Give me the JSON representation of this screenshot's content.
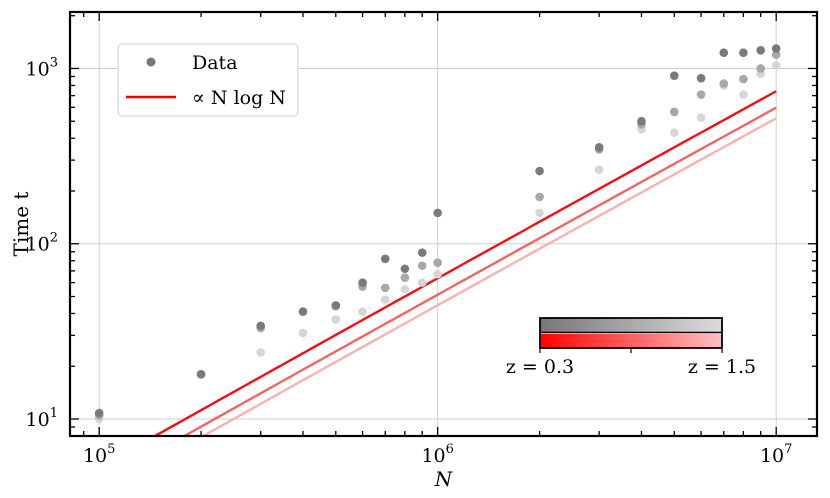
{
  "chart_data": {
    "type": "scatter",
    "xlabel": "N",
    "ylabel": "Time t",
    "xscale": "log",
    "yscale": "log",
    "xlim": [
      82000,
      13200000
    ],
    "ylim": [
      8.0,
      2100
    ],
    "grid": true,
    "x_ticks": [
      {
        "value": 100000,
        "base": "10",
        "exp": "5"
      },
      {
        "value": 1000000,
        "base": "10",
        "exp": "6"
      },
      {
        "value": 10000000,
        "base": "10",
        "exp": "7"
      }
    ],
    "y_ticks": [
      {
        "value": 10,
        "base": "10",
        "exp": "1"
      },
      {
        "value": 100,
        "base": "10",
        "exp": "2"
      },
      {
        "value": 1000,
        "base": "10",
        "exp": "3"
      }
    ],
    "legend": {
      "position": "upper-left",
      "entries": [
        {
          "label": "Data",
          "marker": "dot",
          "color": "#777777"
        },
        {
          "label": "∝ N log N",
          "marker": "line",
          "color": "#ee0000"
        }
      ]
    },
    "series": [
      {
        "z": 0.3,
        "dot_color": "#7a7a7a",
        "line_color": "#ee1111",
        "fit_coefficient": 1.059e-05,
        "points": [
          {
            "x": 100000,
            "y": 10.8
          },
          {
            "x": 200000,
            "y": 18
          },
          {
            "x": 300000,
            "y": 34
          },
          {
            "x": 400000,
            "y": 41
          },
          {
            "x": 500000,
            "y": 44.5
          },
          {
            "x": 600000,
            "y": 60
          },
          {
            "x": 700000,
            "y": 82
          },
          {
            "x": 800000,
            "y": 72
          },
          {
            "x": 900000,
            "y": 89
          },
          {
            "x": 1000000,
            "y": 150
          },
          {
            "x": 2000000,
            "y": 260
          },
          {
            "x": 3000000,
            "y": 355
          },
          {
            "x": 4000000,
            "y": 500
          },
          {
            "x": 5000000,
            "y": 910
          },
          {
            "x": 6000000,
            "y": 880
          },
          {
            "x": 7000000,
            "y": 1230
          },
          {
            "x": 8000000,
            "y": 1230
          },
          {
            "x": 9000000,
            "y": 1270
          },
          {
            "x": 10000000,
            "y": 1300
          }
        ]
      },
      {
        "z": 0.9,
        "dot_color": "#a8a8a8",
        "line_color": "#f06565",
        "fit_coefficient": 8.53e-06,
        "points": [
          {
            "x": 100000,
            "y": 10.5
          },
          {
            "x": 200000,
            "y": 18
          },
          {
            "x": 300000,
            "y": 33
          },
          {
            "x": 400000,
            "y": 41
          },
          {
            "x": 500000,
            "y": 44
          },
          {
            "x": 600000,
            "y": 57
          },
          {
            "x": 700000,
            "y": 56
          },
          {
            "x": 800000,
            "y": 64
          },
          {
            "x": 900000,
            "y": 75
          },
          {
            "x": 1000000,
            "y": 78
          },
          {
            "x": 2000000,
            "y": 185
          },
          {
            "x": 3000000,
            "y": 345
          },
          {
            "x": 4000000,
            "y": 480
          },
          {
            "x": 5000000,
            "y": 565
          },
          {
            "x": 6000000,
            "y": 710
          },
          {
            "x": 7000000,
            "y": 820
          },
          {
            "x": 8000000,
            "y": 870
          },
          {
            "x": 9000000,
            "y": 1000
          },
          {
            "x": 10000000,
            "y": 1200
          }
        ]
      },
      {
        "z": 1.5,
        "dot_color": "#d6d6d6",
        "line_color": "#f6b1b1",
        "fit_coefficient": 7.43e-06,
        "points": [
          {
            "x": 100000,
            "y": 10.0
          },
          {
            "x": 200000,
            "y": 18
          },
          {
            "x": 300000,
            "y": 24
          },
          {
            "x": 400000,
            "y": 31
          },
          {
            "x": 500000,
            "y": 37
          },
          {
            "x": 600000,
            "y": 41
          },
          {
            "x": 700000,
            "y": 48
          },
          {
            "x": 800000,
            "y": 55
          },
          {
            "x": 900000,
            "y": 60
          },
          {
            "x": 1000000,
            "y": 67
          },
          {
            "x": 2000000,
            "y": 150
          },
          {
            "x": 3000000,
            "y": 265
          },
          {
            "x": 4000000,
            "y": 450
          },
          {
            "x": 5000000,
            "y": 430
          },
          {
            "x": 6000000,
            "y": 525
          },
          {
            "x": 7000000,
            "y": 800
          },
          {
            "x": 8000000,
            "y": 710
          },
          {
            "x": 9000000,
            "y": 930
          },
          {
            "x": 10000000,
            "y": 1040
          }
        ]
      }
    ],
    "colorbar": {
      "min_label": "z = 0.3",
      "max_label": "z = 1.5",
      "gray_start": "#767676",
      "gray_end": "#dcdcdc",
      "red_start": "#ff0000",
      "red_end": "#ffc0c0"
    }
  }
}
